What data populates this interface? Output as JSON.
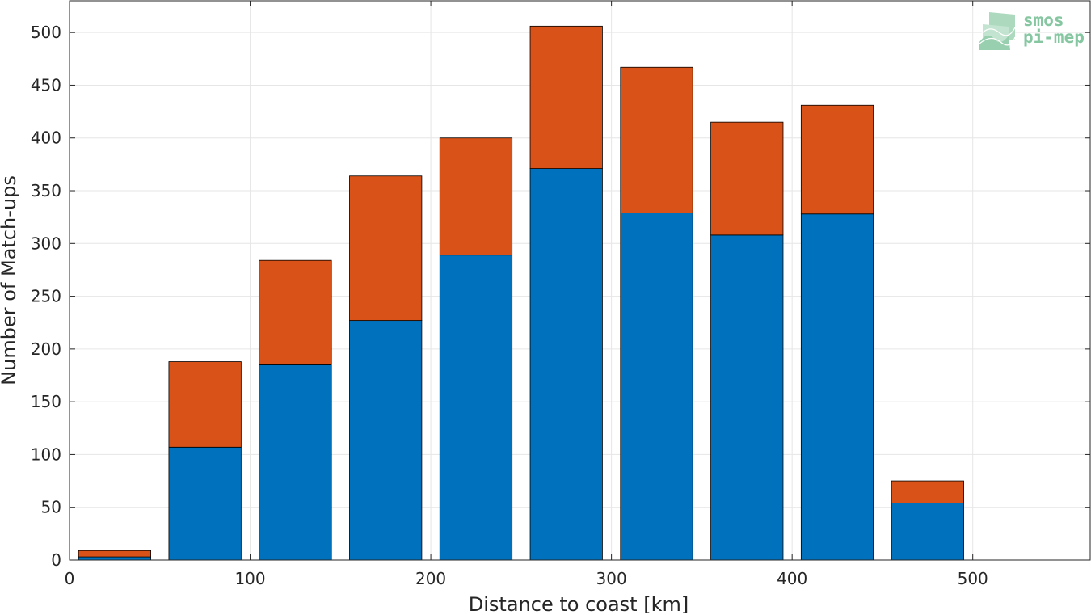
{
  "chart_data": {
    "type": "bar",
    "stacked": true,
    "title": "",
    "xlabel": "Distance to coast [km]",
    "ylabel": "Number of Match-ups",
    "x": [
      25,
      75,
      125,
      175,
      225,
      275,
      325,
      375,
      425,
      475,
      525
    ],
    "series": [
      {
        "values": [
          3,
          107,
          185,
          227,
          289,
          371,
          329,
          308,
          328,
          54,
          0
        ],
        "color": "#0072bd"
      },
      {
        "values": [
          6,
          81,
          99,
          137,
          111,
          135,
          138,
          107,
          103,
          21,
          0
        ],
        "color": "#d95319"
      }
    ],
    "xlim": [
      0,
      565
    ],
    "ylim": [
      0,
      530
    ],
    "xticks": [
      0,
      100,
      200,
      300,
      400,
      500
    ],
    "yticks": [
      0,
      50,
      100,
      150,
      200,
      250,
      300,
      350,
      400,
      450,
      500
    ],
    "grid": true,
    "legend": "none"
  },
  "logo": {
    "line1": "smos",
    "line2": "pi-mep",
    "color": "#86c7a2"
  }
}
